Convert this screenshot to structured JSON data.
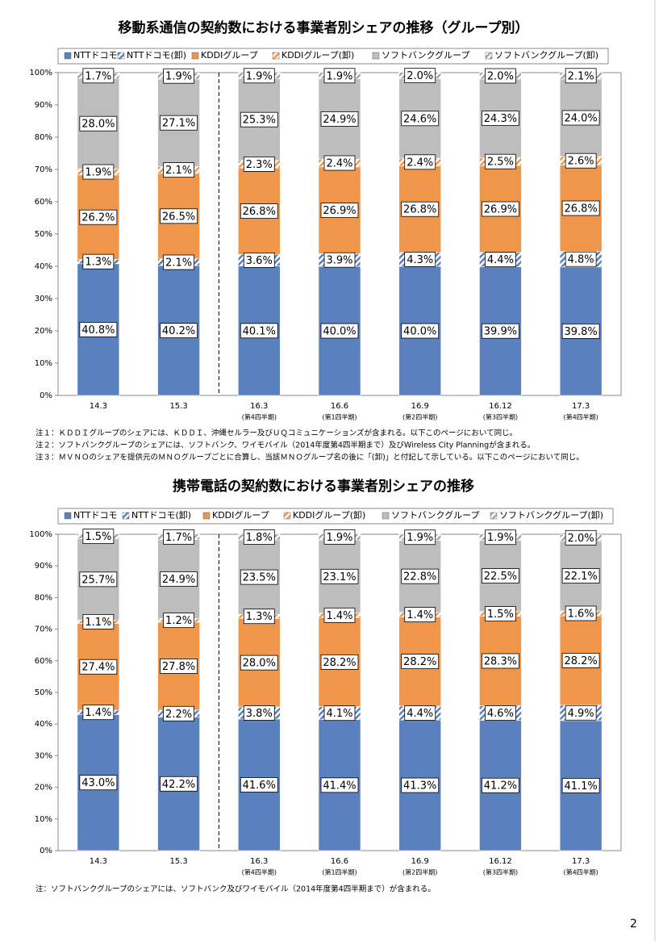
{
  "chart_data": [
    {
      "type": "bar",
      "stacked": true,
      "title": "移動系通信の契約数における事業者別シェアの推移（グループ別）",
      "categories": [
        "14.3",
        "15.3",
        "16.3",
        "16.6",
        "16.9",
        "16.12",
        "17.3"
      ],
      "category_sublabels": [
        null,
        null,
        "(第4四半期)",
        "(第1四半期)",
        "(第2四半期)",
        "(第3四半期)",
        "(第4四半期)"
      ],
      "ylim": [
        0,
        100
      ],
      "yticks": [
        {
          "value": 0,
          "label": "0%"
        },
        {
          "value": 10,
          "label": "10%"
        },
        {
          "value": 20,
          "label": "20%"
        },
        {
          "value": 30,
          "label": "30%"
        },
        {
          "value": 40,
          "label": "40%"
        },
        {
          "value": 50,
          "label": "50%"
        },
        {
          "value": 60,
          "label": "60%"
        },
        {
          "value": 70,
          "label": "70%"
        },
        {
          "value": 80,
          "label": "80%"
        },
        {
          "value": 90,
          "label": "90%"
        },
        {
          "value": 100,
          "label": "100%"
        }
      ],
      "grid": false,
      "legend": "top",
      "series": [
        {
          "name": "NTTドコモ",
          "color": "#5b80be",
          "pattern": "solid",
          "values": [
            40.8,
            40.2,
            40.1,
            40.0,
            40.0,
            39.9,
            39.8
          ],
          "value_labels": [
            "40.8%",
            "40.2%",
            "40.1%",
            "40.0%",
            "40.0%",
            "39.9%",
            "39.8%"
          ]
        },
        {
          "name": "NTTドコモ(卸)",
          "color": "#5b80be",
          "pattern": "hatch",
          "values": [
            1.3,
            2.1,
            3.6,
            3.9,
            4.3,
            4.4,
            4.8
          ],
          "value_labels": [
            "1.3%",
            "2.1%",
            "3.6%",
            "3.9%",
            "4.3%",
            "4.4%",
            "4.8%"
          ]
        },
        {
          "name": "KDDIグループ",
          "color": "#f0964a",
          "pattern": "solid",
          "values": [
            26.2,
            26.5,
            26.8,
            26.9,
            26.8,
            26.9,
            26.8
          ],
          "value_labels": [
            "26.2%",
            "26.5%",
            "26.8%",
            "26.9%",
            "26.8%",
            "26.9%",
            "26.8%"
          ]
        },
        {
          "name": "KDDIグループ(卸)",
          "color": "#f0964a",
          "pattern": "hatch",
          "values": [
            1.9,
            2.1,
            2.3,
            2.4,
            2.4,
            2.5,
            2.6
          ],
          "value_labels": [
            "1.9%",
            "2.1%",
            "2.3%",
            "2.4%",
            "2.4%",
            "2.5%",
            "2.6%"
          ]
        },
        {
          "name": "ソフトバンクグループ",
          "color": "#bdbdbd",
          "pattern": "solid",
          "values": [
            28.0,
            27.1,
            25.3,
            24.9,
            24.6,
            24.3,
            24.0
          ],
          "value_labels": [
            "28.0%",
            "27.1%",
            "25.3%",
            "24.9%",
            "24.6%",
            "24.3%",
            "24.0%"
          ]
        },
        {
          "name": "ソフトバンクグループ(卸)",
          "color": "#a6a6a6",
          "pattern": "hatch",
          "values": [
            1.7,
            1.9,
            1.9,
            1.9,
            2.0,
            2.0,
            2.1
          ],
          "value_labels": [
            "1.7%",
            "1.9%",
            "1.9%",
            "1.9%",
            "2.0%",
            "2.0%",
            "2.1%"
          ]
        }
      ],
      "notes": [
        "注１：ＫＤＤＩグループのシェアには、ＫＤＤＩ、沖縄セルラー及びＵＱコミュニケーションズが含まれる。以下このページにおいて同じ。",
        "注２：ソフトバンクグループのシェアには、ソフトバンク、ワイモバイル（2014年度第4四半期まで）及びWireless City Planningが含まれる。",
        "注３：ＭＶＮＯのシェアを提供元のＭＮＯグループごとに合算し、当該ＭＮＯグループ名の後に「(卸)」と付記して示している。以下このページにおいて同じ。"
      ]
    },
    {
      "type": "bar",
      "stacked": true,
      "title": "携帯電話の契約数における事業者別シェアの推移",
      "categories": [
        "14.3",
        "15.3",
        "16.3",
        "16.6",
        "16.9",
        "16.12",
        "17.3"
      ],
      "category_sublabels": [
        null,
        null,
        "(第4四半期)",
        "(第1四半期)",
        "(第2四半期)",
        "(第3四半期)",
        "(第4四半期)"
      ],
      "ylim": [
        0,
        100
      ],
      "yticks": [
        {
          "value": 0,
          "label": "0%"
        },
        {
          "value": 10,
          "label": "10%"
        },
        {
          "value": 20,
          "label": "20%"
        },
        {
          "value": 30,
          "label": "30%"
        },
        {
          "value": 40,
          "label": "40%"
        },
        {
          "value": 50,
          "label": "50%"
        },
        {
          "value": 60,
          "label": "60%"
        },
        {
          "value": 70,
          "label": "70%"
        },
        {
          "value": 80,
          "label": "80%"
        },
        {
          "value": 90,
          "label": "90%"
        },
        {
          "value": 100,
          "label": "100%"
        }
      ],
      "grid": false,
      "legend": "top",
      "series": [
        {
          "name": "NTTドコモ",
          "color": "#5b80be",
          "pattern": "solid",
          "values": [
            43.0,
            42.2,
            41.6,
            41.4,
            41.3,
            41.2,
            41.1
          ],
          "value_labels": [
            "43.0%",
            "42.2%",
            "41.6%",
            "41.4%",
            "41.3%",
            "41.2%",
            "41.1%"
          ]
        },
        {
          "name": "NTTドコモ(卸)",
          "color": "#5b80be",
          "pattern": "hatch",
          "values": [
            1.4,
            2.2,
            3.8,
            4.1,
            4.4,
            4.6,
            4.9
          ],
          "value_labels": [
            "1.4%",
            "2.2%",
            "3.8%",
            "4.1%",
            "4.4%",
            "4.6%",
            "4.9%"
          ]
        },
        {
          "name": "KDDIグループ",
          "color": "#f0964a",
          "pattern": "solid",
          "values": [
            27.4,
            27.8,
            28.0,
            28.2,
            28.2,
            28.3,
            28.2
          ],
          "value_labels": [
            "27.4%",
            "27.8%",
            "28.0%",
            "28.2%",
            "28.2%",
            "28.3%",
            "28.2%"
          ]
        },
        {
          "name": "KDDIグループ(卸)",
          "color": "#f0964a",
          "pattern": "hatch",
          "values": [
            1.1,
            1.2,
            1.3,
            1.4,
            1.4,
            1.5,
            1.6
          ],
          "value_labels": [
            "1.1%",
            "1.2%",
            "1.3%",
            "1.4%",
            "1.4%",
            "1.5%",
            "1.6%"
          ]
        },
        {
          "name": "ソフトバンクグループ",
          "color": "#bdbdbd",
          "pattern": "solid",
          "values": [
            25.7,
            24.9,
            23.5,
            23.1,
            22.8,
            22.5,
            22.1
          ],
          "value_labels": [
            "25.7%",
            "24.9%",
            "23.5%",
            "23.1%",
            "22.8%",
            "22.5%",
            "22.1%"
          ]
        },
        {
          "name": "ソフトバンクグループ(卸)",
          "color": "#a6a6a6",
          "pattern": "hatch",
          "values": [
            1.5,
            1.7,
            1.8,
            1.9,
            1.9,
            1.9,
            2.0
          ],
          "value_labels": [
            "1.5%",
            "1.7%",
            "1.8%",
            "1.9%",
            "1.9%",
            "1.9%",
            "2.0%"
          ]
        }
      ],
      "notes": [
        "注：ソフトバンクグループのシェアには、ソフトバンク及びワイモバイル（2014年度第4四半期まで）が含まれる。"
      ]
    }
  ],
  "page_number": "2"
}
